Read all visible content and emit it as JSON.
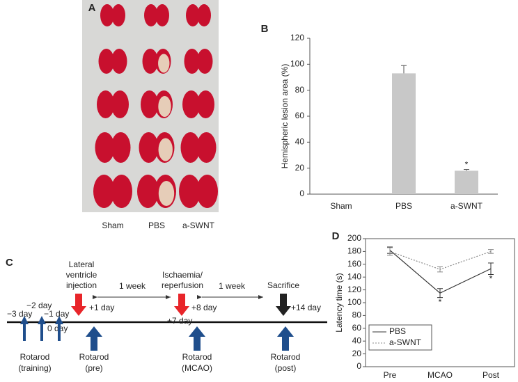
{
  "panel_a": {
    "label": "A",
    "columns": [
      "Sham",
      "PBS",
      "a-SWNT"
    ]
  },
  "chart_data": [
    {
      "type": "bar",
      "label": "B",
      "y_label": "Hemispheric lesion area (%)",
      "categories": [
        "Sham",
        "PBS",
        "a-SWNT"
      ],
      "values": [
        0,
        93,
        18
      ],
      "errors": [
        0,
        6,
        1
      ],
      "color": "#c8c8c8",
      "ylim": [
        0,
        120
      ],
      "yticks": [
        0,
        20,
        40,
        60,
        80,
        100,
        120
      ],
      "annotations": [
        "*"
      ]
    },
    {
      "type": "line",
      "label": "D",
      "y_label": "Latency time (s)",
      "categories": [
        "Pre",
        "MCAO",
        "Post"
      ],
      "series": [
        {
          "name": "PBS",
          "color": "#333333",
          "values": [
            182,
            115,
            153
          ],
          "errors": [
            5,
            7,
            9
          ]
        },
        {
          "name": "a-SWNT",
          "color": "#888888",
          "values": [
            180,
            152,
            180
          ],
          "errors": [
            6,
            4,
            3
          ]
        }
      ],
      "ylim": [
        0,
        200
      ],
      "yticks": [
        0,
        20,
        40,
        60,
        80,
        100,
        120,
        140,
        160,
        180,
        200
      ],
      "annotations": [
        "*",
        "*"
      ],
      "legend": "lower-left"
    }
  ],
  "timeline": {
    "label": "C",
    "events": [
      {
        "lines": [
          "Lateral",
          "ventricle",
          "injection"
        ]
      },
      {
        "lines": [
          "Ischaemia/",
          "reperfusion"
        ]
      },
      {
        "lines": [
          "Sacrifice"
        ]
      }
    ],
    "intervals": [
      "1 week",
      "1 week"
    ],
    "days_above": [
      "+1 day",
      "+8 day",
      "+14 day"
    ],
    "days_below": [
      "0 day",
      "+7 day"
    ],
    "training_days": [
      "−3 day",
      "−2 day",
      "−1 day"
    ],
    "rotarod": [
      {
        "lines": [
          "Rotarod",
          "(training)"
        ]
      },
      {
        "lines": [
          "Rotarod",
          "(pre)"
        ]
      },
      {
        "lines": [
          "Rotarod",
          "(MCAO)"
        ]
      },
      {
        "lines": [
          "Rotarod",
          "(post)"
        ]
      }
    ]
  }
}
